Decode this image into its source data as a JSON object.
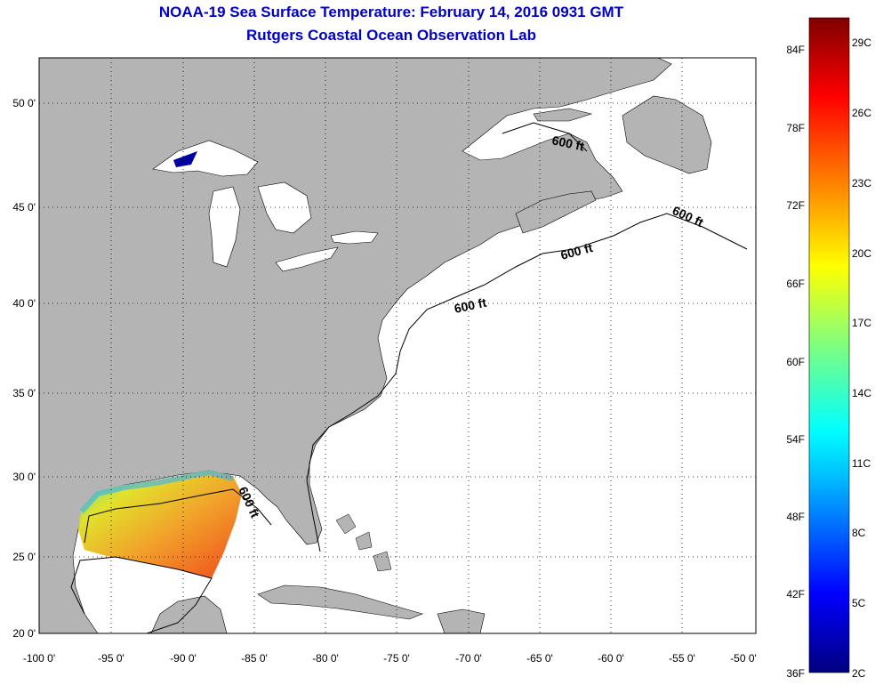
{
  "header": {
    "title": "NOAA-19 Sea Surface Temperature:  February 14, 2016 0931 GMT",
    "subtitle": "Rutgers Coastal Ocean Observation Lab"
  },
  "map": {
    "lon_range": [
      -100,
      -50
    ],
    "lat_range": [
      20,
      52.5
    ],
    "lon_ticks": [
      "-100 0'",
      "-95 0'",
      "-90 0'",
      "-85 0'",
      "-80 0'",
      "-75 0'",
      "-70 0'",
      "-65 0'",
      "-60 0'",
      "-55 0'",
      "-50 0'"
    ],
    "lat_ticks": [
      "50 0'",
      "45 0'",
      "40 0'",
      "35 0'",
      "30 0'",
      "25 0'",
      "20 0'"
    ],
    "land_color": "#b4b4b4",
    "water_color": "#ffffff",
    "isobath_labels": [
      "600 ft",
      "600 ft",
      "600 ft",
      "600 ft",
      "600 ft"
    ]
  },
  "colorbar": {
    "fahrenheit_labels": [
      "84F",
      "78F",
      "72F",
      "66F",
      "60F",
      "54F",
      "48F",
      "42F",
      "36F"
    ],
    "celsius_labels": [
      "29C",
      "26C",
      "23C",
      "20C",
      "17C",
      "14C",
      "11C",
      "8C",
      "5C",
      "2C"
    ],
    "colors": [
      "#00007f",
      "#0000ff",
      "#00bfff",
      "#00ffff",
      "#7fff7f",
      "#ffff00",
      "#ff7f00",
      "#ff0000",
      "#7f0000"
    ]
  }
}
